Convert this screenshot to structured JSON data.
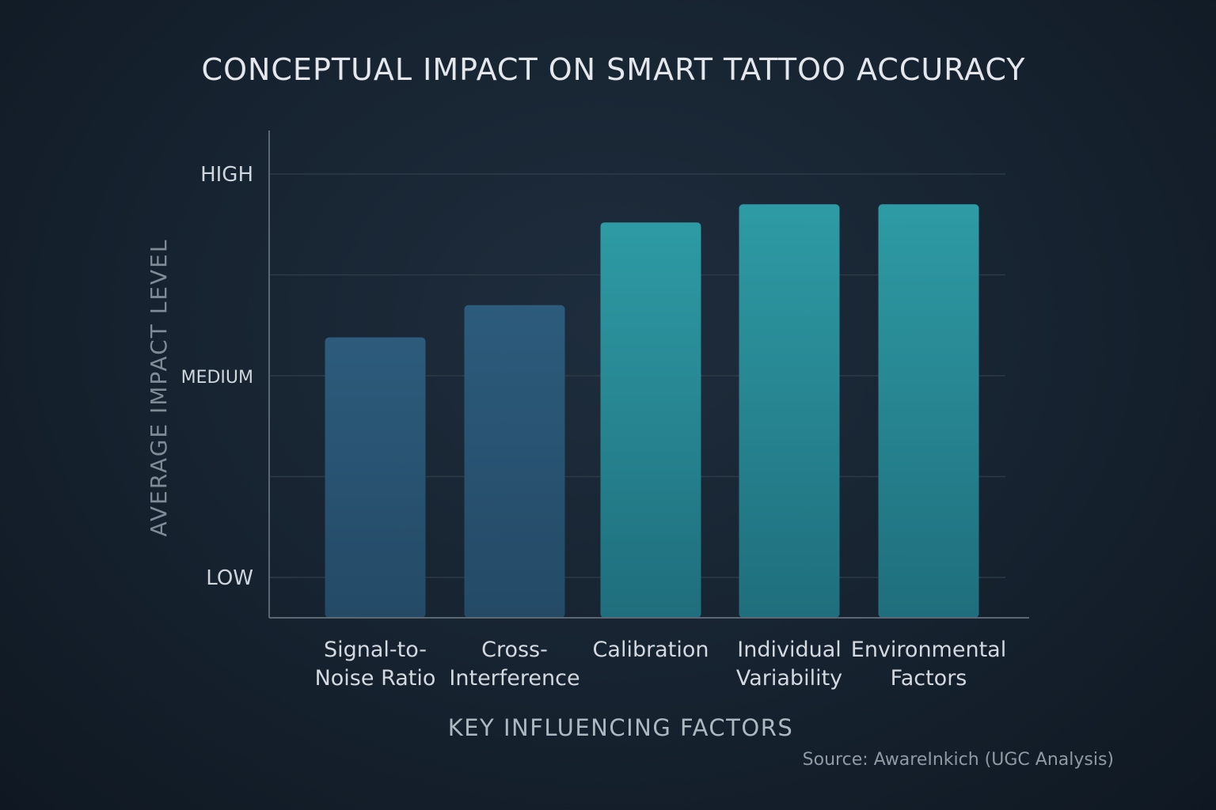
{
  "chart_data": {
    "type": "bar",
    "title": "CONCEPTUAL IMPACT ON SMART TATTOO ACCURACY",
    "xlabel": "KEY INFLUENCING FACTORS",
    "ylabel": "AVERAGE IMPACT LEVEL",
    "source": "Source: AwareInkich (UGC Analysis)",
    "categories": [
      [
        "Signal-to-",
        "Noise Ratio"
      ],
      [
        "Cross-",
        "Interference"
      ],
      [
        "Calibration"
      ],
      [
        "Individual",
        "Variability"
      ],
      [
        "Environmental",
        "Factors"
      ]
    ],
    "values": [
      1.39,
      1.55,
      1.96,
      2.05,
      2.05
    ],
    "ylim": [
      0,
      2.45
    ],
    "yticks": [
      {
        "value": 0.2,
        "label": "LOW"
      },
      {
        "value": 1.2,
        "label": "MEDIUM"
      },
      {
        "value": 2.2,
        "label": "HIGH"
      }
    ],
    "gridlines": [
      0.2,
      0.7,
      1.2,
      1.7,
      2.2
    ],
    "grid": true,
    "colors": {
      "dark_bar_top": "#2d5b7c",
      "dark_bar_bottom": "#244a66",
      "teal_bar_top": "#2e9ba4",
      "teal_bar_bottom": "#1f6e7d",
      "axis": "#5b6772",
      "grid": "#2c3a48"
    },
    "bar_styles": [
      "dark",
      "dark",
      "teal",
      "teal",
      "teal"
    ]
  }
}
